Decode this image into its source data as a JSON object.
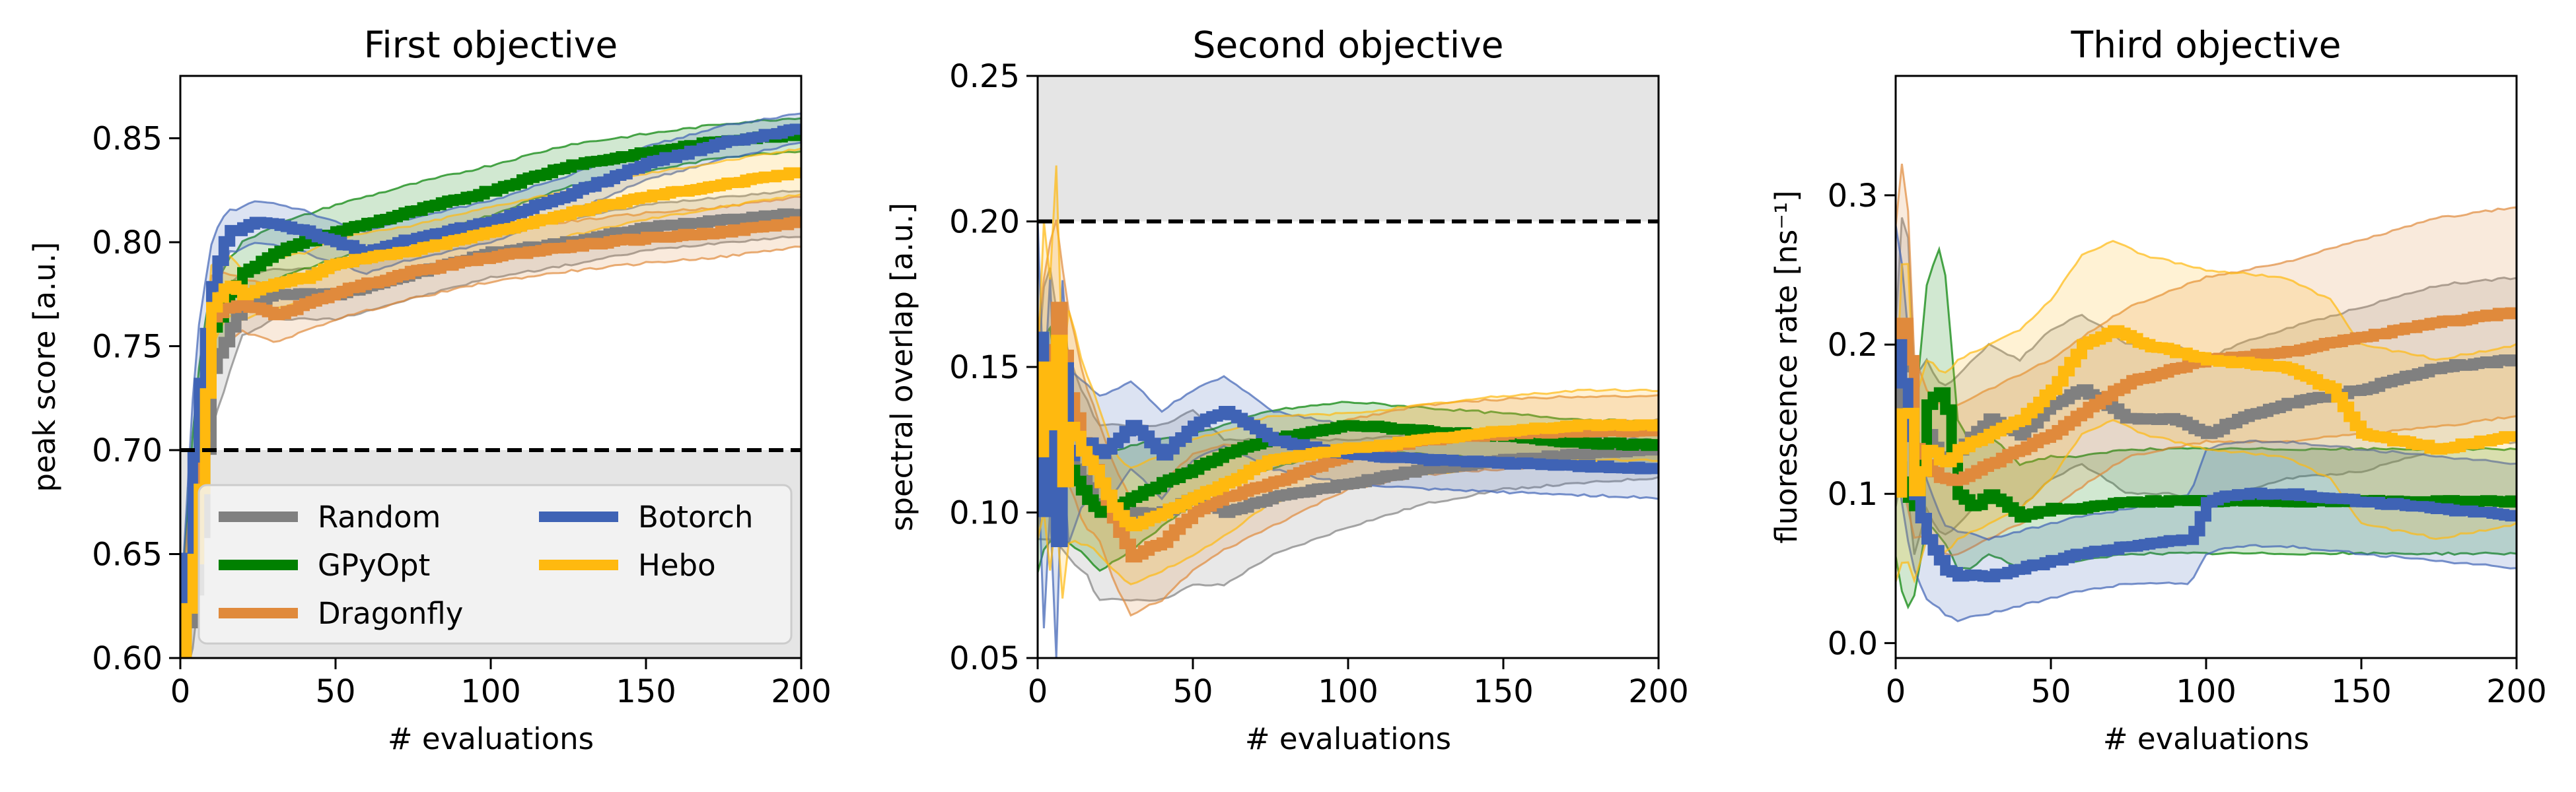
{
  "colors": {
    "Random": "#808080",
    "GPyOpt": "#008000",
    "Dragonfly": "#e08a3c",
    "Botorch": "#3f63b5",
    "Hebo": "#ffb90f",
    "threshold_region": "#e5e5e5"
  },
  "chart_data": [
    {
      "type": "line",
      "title": "First objective",
      "xlabel": "# evaluations",
      "ylabel": "peak score [a.u.]",
      "xlim": [
        0,
        200
      ],
      "ylim": [
        0.6,
        0.88
      ],
      "xticks": [
        0,
        50,
        100,
        150,
        200
      ],
      "yticks": [
        0.6,
        0.65,
        0.7,
        0.75,
        0.8,
        0.85
      ],
      "ytick_labels": [
        "0.60",
        "0.65",
        "0.70",
        "0.75",
        "0.80",
        "0.85"
      ],
      "threshold": 0.7,
      "shaded_region": [
        0.6,
        0.7
      ],
      "legend_position": "lower-left",
      "legend": [
        "Random",
        "GPyOpt",
        "Dragonfly",
        "Botorch",
        "Hebo"
      ],
      "series": [
        {
          "name": "Random",
          "x": [
            0,
            5,
            10,
            20,
            30,
            50,
            75,
            100,
            125,
            150,
            175,
            200
          ],
          "y": [
            0.6,
            0.64,
            0.74,
            0.77,
            0.775,
            0.775,
            0.785,
            0.795,
            0.8,
            0.807,
            0.811,
            0.814
          ],
          "band": [
            0.02,
            0.03,
            0.03,
            0.015,
            0.012,
            0.012,
            0.012,
            0.012,
            0.011,
            0.011,
            0.011,
            0.011
          ]
        },
        {
          "name": "GPyOpt",
          "x": [
            0,
            5,
            10,
            20,
            30,
            40,
            50,
            75,
            100,
            125,
            150,
            175,
            200
          ],
          "y": [
            0.6,
            0.7,
            0.76,
            0.785,
            0.795,
            0.8,
            0.805,
            0.815,
            0.825,
            0.837,
            0.843,
            0.849,
            0.852
          ],
          "band": [
            0.02,
            0.03,
            0.02,
            0.015,
            0.013,
            0.013,
            0.013,
            0.013,
            0.012,
            0.01,
            0.009,
            0.008,
            0.008
          ]
        },
        {
          "name": "Dragonfly",
          "x": [
            0,
            5,
            10,
            20,
            30,
            40,
            50,
            75,
            100,
            125,
            150,
            175,
            200
          ],
          "y": [
            0.6,
            0.68,
            0.765,
            0.77,
            0.765,
            0.77,
            0.776,
            0.786,
            0.793,
            0.798,
            0.802,
            0.805,
            0.81
          ],
          "band": [
            0.02,
            0.03,
            0.02,
            0.013,
            0.013,
            0.013,
            0.013,
            0.013,
            0.012,
            0.012,
            0.012,
            0.012,
            0.012
          ]
        },
        {
          "name": "Botorch",
          "x": [
            0,
            5,
            10,
            15,
            25,
            40,
            50,
            60,
            75,
            100,
            125,
            150,
            175,
            200
          ],
          "y": [
            0.6,
            0.72,
            0.78,
            0.805,
            0.81,
            0.805,
            0.8,
            0.795,
            0.802,
            0.81,
            0.823,
            0.838,
            0.848,
            0.855
          ],
          "band": [
            0.02,
            0.03,
            0.02,
            0.01,
            0.01,
            0.01,
            0.01,
            0.01,
            0.01,
            0.01,
            0.009,
            0.008,
            0.008,
            0.007
          ]
        },
        {
          "name": "Hebo",
          "x": [
            0,
            5,
            10,
            15,
            20,
            30,
            40,
            50,
            75,
            100,
            125,
            150,
            175,
            200
          ],
          "y": [
            0.6,
            0.66,
            0.77,
            0.78,
            0.775,
            0.78,
            0.783,
            0.79,
            0.796,
            0.805,
            0.814,
            0.822,
            0.828,
            0.834
          ],
          "band": [
            0.02,
            0.03,
            0.02,
            0.015,
            0.012,
            0.012,
            0.012,
            0.012,
            0.012,
            0.012,
            0.011,
            0.011,
            0.011,
            0.011
          ]
        }
      ]
    },
    {
      "type": "line",
      "title": "Second objective",
      "xlabel": "# evaluations",
      "ylabel": "spectral overlap [a.u.]",
      "xlim": [
        0,
        200
      ],
      "ylim": [
        0.05,
        0.25
      ],
      "xticks": [
        0,
        50,
        100,
        150,
        200
      ],
      "yticks": [
        0.05,
        0.1,
        0.15,
        0.2,
        0.25
      ],
      "ytick_labels": [
        "0.05",
        "0.10",
        "0.15",
        "0.20",
        "0.25"
      ],
      "threshold": 0.2,
      "shaded_region": [
        0.2,
        0.25
      ],
      "series": [
        {
          "name": "Random",
          "x": [
            0,
            3,
            6,
            10,
            15,
            20,
            30,
            40,
            50,
            60,
            75,
            100,
            125,
            150,
            175,
            200
          ],
          "y": [
            0.12,
            0.14,
            0.13,
            0.12,
            0.11,
            0.1,
            0.1,
            0.1,
            0.105,
            0.1,
            0.105,
            0.11,
            0.115,
            0.118,
            0.12,
            0.122
          ],
          "band": [
            0.03,
            0.05,
            0.04,
            0.035,
            0.03,
            0.03,
            0.03,
            0.03,
            0.03,
            0.025,
            0.02,
            0.015,
            0.012,
            0.01,
            0.01,
            0.01
          ]
        },
        {
          "name": "GPyOpt",
          "x": [
            0,
            3,
            6,
            10,
            15,
            20,
            30,
            40,
            50,
            60,
            75,
            100,
            125,
            150,
            175,
            200
          ],
          "y": [
            0.11,
            0.13,
            0.12,
            0.115,
            0.105,
            0.1,
            0.105,
            0.11,
            0.115,
            0.12,
            0.125,
            0.13,
            0.128,
            0.126,
            0.124,
            0.123
          ],
          "band": [
            0.03,
            0.04,
            0.03,
            0.025,
            0.02,
            0.02,
            0.018,
            0.015,
            0.012,
            0.01,
            0.01,
            0.008,
            0.008,
            0.008,
            0.008,
            0.008
          ]
        },
        {
          "name": "Dragonfly",
          "x": [
            0,
            3,
            6,
            10,
            15,
            20,
            25,
            30,
            40,
            50,
            60,
            75,
            100,
            125,
            150,
            175,
            200
          ],
          "y": [
            0.13,
            0.15,
            0.17,
            0.14,
            0.12,
            0.11,
            0.095,
            0.085,
            0.09,
            0.1,
            0.105,
            0.11,
            0.12,
            0.125,
            0.127,
            0.128,
            0.128
          ],
          "band": [
            0.03,
            0.04,
            0.03,
            0.03,
            0.025,
            0.02,
            0.02,
            0.02,
            0.02,
            0.02,
            0.018,
            0.015,
            0.012,
            0.012,
            0.012,
            0.012,
            0.012
          ]
        },
        {
          "name": "Botorch",
          "x": [
            0,
            2,
            4,
            6,
            8,
            10,
            15,
            20,
            30,
            40,
            50,
            60,
            75,
            100,
            125,
            150,
            175,
            200
          ],
          "y": [
            0.16,
            0.1,
            0.14,
            0.09,
            0.15,
            0.12,
            0.125,
            0.12,
            0.13,
            0.12,
            0.13,
            0.135,
            0.125,
            0.12,
            0.118,
            0.117,
            0.116,
            0.115
          ],
          "band": [
            0.04,
            0.04,
            0.04,
            0.04,
            0.03,
            0.03,
            0.02,
            0.02,
            0.015,
            0.015,
            0.012,
            0.012,
            0.01,
            0.01,
            0.01,
            0.01,
            0.01,
            0.01
          ]
        },
        {
          "name": "Hebo",
          "x": [
            0,
            2,
            4,
            6,
            8,
            10,
            15,
            20,
            25,
            30,
            40,
            50,
            60,
            75,
            100,
            125,
            150,
            175,
            200
          ],
          "y": [
            0.12,
            0.15,
            0.13,
            0.16,
            0.11,
            0.13,
            0.12,
            0.11,
            0.1,
            0.095,
            0.1,
            0.105,
            0.11,
            0.118,
            0.122,
            0.125,
            0.128,
            0.13,
            0.13
          ],
          "band": [
            0.03,
            0.05,
            0.05,
            0.06,
            0.04,
            0.04,
            0.03,
            0.025,
            0.02,
            0.02,
            0.02,
            0.02,
            0.018,
            0.015,
            0.012,
            0.012,
            0.012,
            0.012,
            0.012
          ]
        }
      ]
    },
    {
      "type": "line",
      "title": "Third objective",
      "xlabel": "# evaluations",
      "ylabel": "fluorescence rate [ns⁻¹]",
      "xlim": [
        0,
        200
      ],
      "ylim": [
        -0.01,
        0.38
      ],
      "xticks": [
        0,
        50,
        100,
        150,
        200
      ],
      "yticks": [
        0.0,
        0.1,
        0.2,
        0.3
      ],
      "ytick_labels": [
        "0.0",
        "0.1",
        "0.2",
        "0.3"
      ],
      "series": [
        {
          "name": "Random",
          "x": [
            0,
            3,
            6,
            10,
            15,
            20,
            30,
            40,
            50,
            60,
            75,
            90,
            100,
            110,
            125,
            150,
            175,
            200
          ],
          "y": [
            0.15,
            0.22,
            0.12,
            0.14,
            0.12,
            0.13,
            0.15,
            0.14,
            0.16,
            0.17,
            0.15,
            0.15,
            0.14,
            0.15,
            0.16,
            0.17,
            0.185,
            0.19
          ],
          "band": [
            0.06,
            0.1,
            0.06,
            0.05,
            0.05,
            0.05,
            0.05,
            0.05,
            0.05,
            0.05,
            0.05,
            0.05,
            0.05,
            0.05,
            0.05,
            0.055,
            0.055,
            0.055
          ]
        },
        {
          "name": "GPyOpt",
          "x": [
            0,
            3,
            6,
            10,
            15,
            20,
            25,
            30,
            40,
            50,
            60,
            75,
            90,
            100,
            125,
            150,
            175,
            200
          ],
          "y": [
            0.12,
            0.1,
            0.09,
            0.16,
            0.17,
            0.1,
            0.09,
            0.1,
            0.085,
            0.09,
            0.09,
            0.095,
            0.095,
            0.095,
            0.095,
            0.095,
            0.095,
            0.095
          ],
          "band": [
            0.06,
            0.08,
            0.06,
            0.08,
            0.1,
            0.05,
            0.04,
            0.04,
            0.035,
            0.035,
            0.035,
            0.035,
            0.035,
            0.035,
            0.035,
            0.035,
            0.035,
            0.035
          ]
        },
        {
          "name": "Dragonfly",
          "x": [
            0,
            3,
            6,
            10,
            15,
            20,
            30,
            40,
            50,
            60,
            75,
            100,
            125,
            150,
            175,
            200
          ],
          "y": [
            0.2,
            0.22,
            0.13,
            0.12,
            0.11,
            0.11,
            0.12,
            0.13,
            0.14,
            0.155,
            0.175,
            0.19,
            0.195,
            0.205,
            0.215,
            0.222
          ],
          "band": [
            0.08,
            0.12,
            0.06,
            0.05,
            0.05,
            0.05,
            0.05,
            0.05,
            0.05,
            0.05,
            0.05,
            0.055,
            0.06,
            0.065,
            0.07,
            0.07
          ]
        },
        {
          "name": "Botorch",
          "x": [
            0,
            3,
            6,
            10,
            15,
            20,
            30,
            40,
            50,
            60,
            75,
            95,
            100,
            110,
            125,
            150,
            175,
            200
          ],
          "y": [
            0.2,
            0.16,
            0.1,
            0.07,
            0.05,
            0.045,
            0.045,
            0.05,
            0.055,
            0.06,
            0.065,
            0.07,
            0.095,
            0.1,
            0.1,
            0.095,
            0.09,
            0.085
          ],
          "band": [
            0.08,
            0.08,
            0.05,
            0.04,
            0.03,
            0.03,
            0.025,
            0.025,
            0.025,
            0.025,
            0.025,
            0.03,
            0.035,
            0.035,
            0.035,
            0.035,
            0.035,
            0.035
          ]
        },
        {
          "name": "Hebo",
          "x": [
            0,
            3,
            6,
            10,
            15,
            20,
            30,
            40,
            50,
            60,
            70,
            80,
            100,
            125,
            140,
            150,
            175,
            200
          ],
          "y": [
            0.1,
            0.18,
            0.1,
            0.13,
            0.12,
            0.13,
            0.14,
            0.15,
            0.17,
            0.2,
            0.21,
            0.2,
            0.19,
            0.185,
            0.17,
            0.14,
            0.13,
            0.14
          ],
          "band": [
            0.06,
            0.12,
            0.06,
            0.06,
            0.06,
            0.06,
            0.06,
            0.06,
            0.06,
            0.06,
            0.06,
            0.06,
            0.06,
            0.06,
            0.06,
            0.06,
            0.06,
            0.06
          ]
        }
      ]
    }
  ]
}
